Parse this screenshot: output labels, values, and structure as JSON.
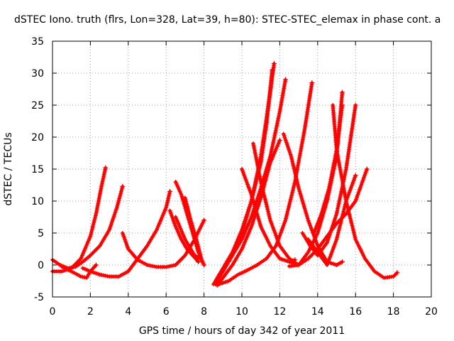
{
  "chart_data": {
    "type": "scatter",
    "title": "dSTEC Iono. truth (flrs, Lon=328, Lat=39, h=80): STEC-STEC_elemax in phase cont. a",
    "xlabel": "GPS time / hours of day 342 of year 2011",
    "ylabel": "dSTEC  / TECUs",
    "xlim": [
      0,
      20
    ],
    "ylim": [
      -5,
      35
    ],
    "xticks": [
      "0",
      "2",
      "4",
      "6",
      "8",
      "10",
      "12",
      "14",
      "16",
      "18",
      "20"
    ],
    "yticks": [
      "-5",
      "0",
      "5",
      "10",
      "15",
      "20",
      "25",
      "30",
      "35"
    ],
    "grid": true,
    "color": "#ff0000",
    "marker": "plus",
    "series": [
      {
        "x": [
          0.0,
          0.5,
          1.0,
          1.5,
          2.0,
          2.3,
          2.6,
          2.8
        ],
        "y": [
          -1.0,
          -1.0,
          -0.5,
          1.0,
          4.5,
          8.0,
          12.5,
          15.2
        ]
      },
      {
        "x": [
          0.0,
          0.4,
          0.8,
          1.2,
          1.6,
          2.0,
          2.5,
          3.0,
          3.4,
          3.7
        ],
        "y": [
          0.8,
          0.0,
          -0.5,
          -0.3,
          0.5,
          1.5,
          3.0,
          5.5,
          9.0,
          12.3
        ]
      },
      {
        "x": [
          0.5,
          1.0,
          1.5,
          1.8,
          2.0,
          2.3
        ],
        "y": [
          -0.3,
          -1.0,
          -1.8,
          -2.0,
          -1.0,
          0.0
        ]
      },
      {
        "x": [
          1.6,
          2.0,
          2.5,
          3.0,
          3.5,
          4.0,
          4.5,
          5.0,
          5.5,
          6.0,
          6.2
        ],
        "y": [
          -0.5,
          -1.0,
          -1.5,
          -1.8,
          -1.8,
          -1.0,
          1.0,
          3.0,
          5.5,
          9.0,
          11.5
        ]
      },
      {
        "x": [
          3.7,
          4.0,
          4.5,
          5.0,
          5.5,
          6.0,
          6.5,
          7.0,
          7.5,
          8.0
        ],
        "y": [
          5.0,
          2.5,
          0.8,
          0.0,
          -0.3,
          -0.3,
          0.0,
          1.5,
          4.0,
          7.0
        ]
      },
      {
        "x": [
          6.5,
          6.8,
          7.1,
          7.4,
          7.7,
          8.0
        ],
        "y": [
          13.0,
          11.0,
          8.0,
          5.0,
          2.0,
          0.0
        ]
      },
      {
        "x": [
          7.0,
          7.3,
          7.6,
          7.9
        ],
        "y": [
          10.5,
          7.0,
          4.0,
          0.5
        ]
      },
      {
        "x": [
          6.2,
          6.5,
          6.8,
          7.1,
          7.4,
          7.7
        ],
        "y": [
          8.5,
          6.0,
          4.0,
          2.5,
          1.5,
          0.5
        ]
      },
      {
        "x": [
          6.5,
          7.0,
          7.5,
          7.8
        ],
        "y": [
          7.5,
          4.0,
          1.5,
          1.0
        ]
      },
      {
        "x": [
          8.5,
          9.0,
          9.5,
          10.0,
          10.5,
          11.0,
          11.2,
          11.5,
          11.7
        ],
        "y": [
          -3.0,
          -1.0,
          1.5,
          5.0,
          10.0,
          17.0,
          21.0,
          27.0,
          31.5
        ]
      },
      {
        "x": [
          8.6,
          9.0,
          9.5,
          10.0,
          10.5,
          11.0,
          11.3,
          11.6
        ],
        "y": [
          -2.5,
          -0.5,
          2.0,
          5.5,
          10.0,
          16.0,
          22.0,
          30.5
        ]
      },
      {
        "x": [
          8.6,
          9.0,
          9.5,
          10.0,
          10.5,
          11.0,
          11.5,
          12.0,
          12.3
        ],
        "y": [
          -3.0,
          -1.0,
          1.5,
          4.0,
          7.5,
          12.0,
          17.0,
          24.0,
          29.0
        ]
      },
      {
        "x": [
          8.7,
          9.0,
          9.5,
          10.0,
          10.5,
          11.0,
          11.5,
          12.0
        ],
        "y": [
          -3.2,
          -2.0,
          0.0,
          2.5,
          6.0,
          10.5,
          16.0,
          19.5
        ]
      },
      {
        "x": [
          8.8,
          9.3,
          9.8,
          10.3,
          10.8,
          11.3,
          11.8,
          12.3,
          12.8,
          13.3,
          13.7
        ],
        "y": [
          -3.0,
          -2.5,
          -1.5,
          -0.8,
          0.0,
          1.0,
          3.0,
          7.0,
          13.0,
          21.0,
          28.5
        ]
      },
      {
        "x": [
          10.0,
          10.5,
          11.0,
          11.5,
          12.0,
          12.5,
          12.8
        ],
        "y": [
          15.0,
          11.0,
          6.0,
          3.0,
          1.0,
          0.5,
          0.8
        ]
      },
      {
        "x": [
          10.6,
          11.0,
          11.5,
          12.0,
          12.5,
          13.0
        ],
        "y": [
          19.0,
          13.0,
          7.0,
          3.0,
          1.0,
          0.0
        ]
      },
      {
        "x": [
          12.2,
          12.6,
          13.0,
          13.5,
          14.0,
          14.5,
          15.0,
          15.3
        ],
        "y": [
          20.5,
          17.0,
          12.0,
          7.0,
          3.0,
          0.5,
          0.0,
          0.5
        ]
      },
      {
        "x": [
          12.5,
          13.0,
          13.5,
          14.0,
          14.5,
          15.0,
          15.5,
          16.0,
          16.6
        ],
        "y": [
          -0.2,
          0.0,
          1.0,
          2.5,
          4.5,
          6.5,
          8.0,
          10.0,
          15.0
        ]
      },
      {
        "x": [
          12.5,
          13.0,
          13.5,
          14.0,
          14.5,
          15.0,
          15.3
        ],
        "y": [
          0.5,
          0.0,
          2.0,
          5.0,
          10.0,
          17.0,
          27.0
        ]
      },
      {
        "x": [
          14.8,
          15.0,
          15.5,
          16.0,
          16.5,
          17.0,
          17.5,
          18.0,
          18.2
        ],
        "y": [
          25.0,
          18.0,
          10.0,
          4.0,
          1.0,
          -1.0,
          -2.0,
          -1.8,
          -1.2
        ]
      },
      {
        "x": [
          13.2,
          13.6,
          14.0,
          14.5,
          15.0,
          15.5,
          16.0
        ],
        "y": [
          5.0,
          3.0,
          1.5,
          3.5,
          8.0,
          15.0,
          25.0
        ]
      },
      {
        "x": [
          13.8,
          14.2,
          14.6,
          15.0,
          15.3
        ],
        "y": [
          5.0,
          8.0,
          12.0,
          18.0,
          25.0
        ]
      },
      {
        "x": [
          13.5,
          14.0,
          14.5,
          15.0,
          15.5,
          16.0
        ],
        "y": [
          4.0,
          2.0,
          0.0,
          4.0,
          10.0,
          14.0
        ]
      }
    ]
  }
}
